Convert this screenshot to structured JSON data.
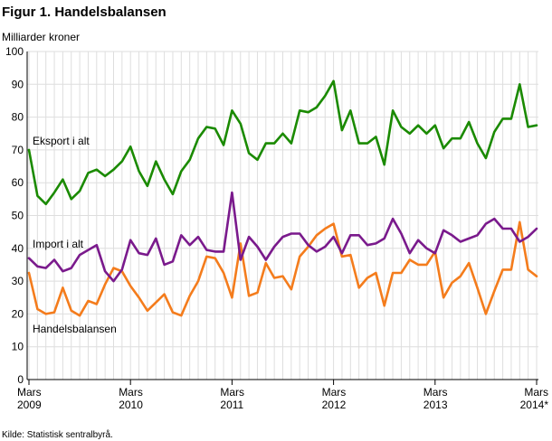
{
  "title": "Figur 1. Handelsbalansen",
  "unit_label": "Milliarder kroner",
  "source": "Kilde: Statistisk sentralbyrå.",
  "chart_data": {
    "type": "line",
    "title": "Figur 1. Handelsbalansen",
    "ylabel": "Milliarder kroner",
    "ylim": [
      0,
      100
    ],
    "y_ticks": [
      0,
      10,
      20,
      30,
      40,
      50,
      60,
      70,
      80,
      90,
      100
    ],
    "grid": true,
    "x_start": "2009-03",
    "x_end": "2014-03",
    "x_tick_labels": [
      {
        "month": "Mars",
        "year": "2009"
      },
      {
        "month": "Mars",
        "year": "2010"
      },
      {
        "month": "Mars",
        "year": "2011"
      },
      {
        "month": "Mars",
        "year": "2012"
      },
      {
        "month": "Mars",
        "year": "2013"
      },
      {
        "month": "Mars",
        "year": "2014*"
      }
    ],
    "series": [
      {
        "name": "Eksport i alt",
        "color": "#1a8a00",
        "values": [
          70,
          56,
          53.5,
          57,
          61,
          55,
          57.5,
          63,
          64,
          62,
          64,
          66.5,
          71,
          63.5,
          59,
          66.5,
          61,
          56.5,
          63.5,
          67,
          73.5,
          77,
          76.5,
          71.5,
          82,
          78,
          69,
          67,
          72,
          72,
          75,
          72,
          82,
          81.5,
          83,
          86.5,
          91,
          76,
          82,
          72,
          72,
          74,
          65.5,
          82,
          77,
          75,
          77.5,
          75,
          77.5,
          70.5,
          73.5,
          73.5,
          78.5,
          72,
          67.5,
          75.5,
          79.5,
          79.5,
          90,
          77,
          77.5
        ]
      },
      {
        "name": "Import i alt",
        "color": "#7a1a8c",
        "values": [
          37,
          34.5,
          34,
          36.5,
          33,
          34,
          38,
          39.5,
          41,
          33,
          30,
          33.5,
          42.5,
          38.5,
          38,
          43,
          35,
          36,
          44,
          41,
          43.5,
          39.5,
          39,
          39,
          57,
          36.5,
          43.5,
          40.5,
          36.5,
          40.5,
          43.5,
          44.5,
          44.5,
          41,
          39,
          40.5,
          43.5,
          38.5,
          44,
          44,
          41,
          41.5,
          43,
          49,
          44.5,
          38.5,
          42.5,
          40,
          38.5,
          45.5,
          44,
          42,
          43,
          44,
          47.5,
          49,
          46,
          46,
          42,
          43.5,
          46
        ]
      },
      {
        "name": "Handelsbalansen",
        "color": "#f47c1c",
        "values": [
          32.5,
          21.5,
          20,
          20.5,
          28,
          21,
          19.5,
          24,
          23,
          29,
          34,
          33,
          28.5,
          25,
          21,
          23.5,
          26,
          20.5,
          19.5,
          25.5,
          30,
          37.5,
          37,
          32.5,
          25,
          41.5,
          25.5,
          26.5,
          35.5,
          31,
          31.5,
          27.5,
          37.5,
          40.5,
          44,
          46,
          47.5,
          37.5,
          38,
          28,
          31,
          32.5,
          22.5,
          32.5,
          32.5,
          36.5,
          35,
          35,
          39,
          25,
          29.5,
          31.5,
          35.5,
          28,
          20,
          27,
          33.5,
          33.5,
          48,
          33.5,
          31.5
        ]
      }
    ],
    "annotations": [
      {
        "text": "Eksport i alt",
        "series": "Eksport i alt"
      },
      {
        "text": "Import i alt",
        "series": "Import i alt"
      },
      {
        "text": "Handelsbalansen",
        "series": "Handelsbalansen"
      }
    ]
  }
}
